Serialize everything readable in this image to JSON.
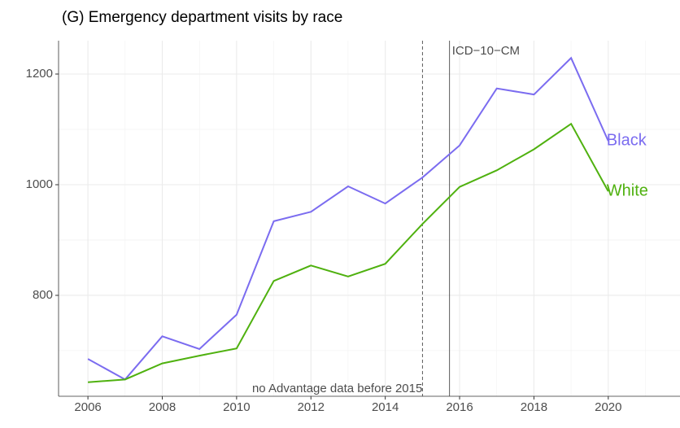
{
  "chart_data": {
    "type": "line",
    "title": "(G) Emergency department visits by race",
    "x": [
      2006,
      2007,
      2008,
      2009,
      2010,
      2011,
      2012,
      2013,
      2014,
      2015,
      2016,
      2017,
      2018,
      2019,
      2020
    ],
    "series": [
      {
        "name": "Black",
        "color": "#7b6cf0",
        "values": [
          685,
          648,
          726,
          703,
          765,
          934,
          951,
          997,
          966,
          1013,
          1071,
          1174,
          1163,
          1229,
          1079
        ]
      },
      {
        "name": "White",
        "color": "#4fb10f",
        "values": [
          643,
          648,
          677,
          691,
          704,
          826,
          854,
          834,
          857,
          929,
          996,
          1026,
          1064,
          1110,
          988
        ]
      }
    ],
    "xlim": [
      2005.21,
      2021.93
    ],
    "ylim": [
      617.6,
      1260.3
    ],
    "xticks": [
      2006,
      2008,
      2010,
      2012,
      2014,
      2016,
      2018,
      2020
    ],
    "yticks": [
      800,
      1000,
      1200
    ],
    "grid": true,
    "vlines": [
      {
        "x": 2015,
        "style": "dashed",
        "label": "no Advantage data before 2015"
      },
      {
        "x": 2015.73,
        "style": "solid",
        "label": "ICD−10−CM"
      }
    ]
  }
}
